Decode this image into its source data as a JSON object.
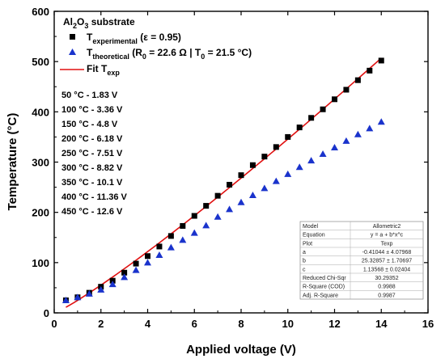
{
  "chart_data": {
    "type": "scatter",
    "xlabel": "Applied voltage (V)",
    "ylabel": "Temperature (°C)",
    "xlim": [
      0,
      16
    ],
    "ylim": [
      0,
      600
    ],
    "xticks": [
      "0",
      "2",
      "4",
      "6",
      "8",
      "10",
      "12",
      "14",
      "16"
    ],
    "yticks": [
      "0",
      "100",
      "200",
      "300",
      "400",
      "500",
      "600"
    ],
    "grid": false,
    "legend_position": "top-left",
    "legend": {
      "title_main": "Al",
      "title_sub1": "2",
      "title_mid": "O",
      "title_sub2": "3",
      "title_end": " substrate",
      "exp_main": "T",
      "exp_sub": "experimental",
      "exp_rest": " (ε = 0.95)",
      "theo_main": "T",
      "theo_sub": "theoretical",
      "theo_rest": " (R",
      "theo_r_sub": "0",
      "theo_mid": " = 22.6 Ω | T",
      "theo_t_sub": "0",
      "theo_end": " = 21.5 °C)",
      "fit_main": "Fit T",
      "fit_sub": "exp"
    },
    "annotations": [
      "50 °C - 1.83 V",
      "100 °C - 3.36 V",
      "150 °C - 4.8 V",
      "200 °C - 6.18 V",
      "250 °C - 7.51 V",
      "300 °C - 8.82 V",
      "350 °C - 10.1 V",
      "400 °C - 11.36 V",
      "450 °C - 12.6 V"
    ],
    "series": [
      {
        "name": "experimental",
        "marker": "square",
        "color": "#000000",
        "x": [
          0.5,
          1,
          1.5,
          2,
          2.5,
          3,
          3.5,
          4,
          4.5,
          5,
          5.5,
          6,
          6.5,
          7,
          7.5,
          8,
          8.5,
          9,
          9.5,
          10,
          10.5,
          11,
          11.5,
          12,
          12.5,
          13,
          13.5,
          14
        ],
        "y": [
          25,
          31,
          40,
          52,
          64,
          80,
          98,
          113,
          132,
          153,
          173,
          193,
          213,
          233,
          255,
          274,
          294,
          311,
          330,
          350,
          369,
          388,
          405,
          425,
          444,
          463,
          482,
          502
        ]
      },
      {
        "name": "theoretical",
        "marker": "triangle",
        "color": "#1a33cc",
        "x": [
          0.5,
          1,
          1.5,
          2,
          2.5,
          3,
          3.5,
          4,
          4.5,
          5,
          5.5,
          6,
          6.5,
          7,
          7.5,
          8,
          8.5,
          9,
          9.5,
          10,
          10.5,
          11,
          11.5,
          12,
          12.5,
          13,
          13.5,
          14
        ],
        "y": [
          25,
          31,
          38,
          46,
          57,
          71,
          85,
          100,
          115,
          130,
          145,
          159,
          174,
          191,
          206,
          220,
          234,
          248,
          262,
          276,
          290,
          303,
          316,
          329,
          342,
          355,
          367,
          380
        ]
      }
    ],
    "fit": {
      "color": "#e01010",
      "x_range": [
        0.5,
        14
      ],
      "a": -0.41044,
      "b": 25.32857,
      "c": 1.13568
    },
    "fit_table": {
      "rows": [
        [
          "Model",
          "Allometric2"
        ],
        [
          "Equation",
          "y = a + b*x^c"
        ],
        [
          "Plot",
          "Texp"
        ],
        [
          "a",
          "-0.41044 ± 4.07968"
        ],
        [
          "b",
          "25.32857 ± 1.70697"
        ],
        [
          "c",
          "1.13568 ± 0.02404"
        ],
        [
          "Reduced Chi-Sqr",
          "30.29352"
        ],
        [
          "R-Square (COD)",
          "0.9988"
        ],
        [
          "Adj. R-Square",
          "0.9987"
        ]
      ]
    }
  }
}
